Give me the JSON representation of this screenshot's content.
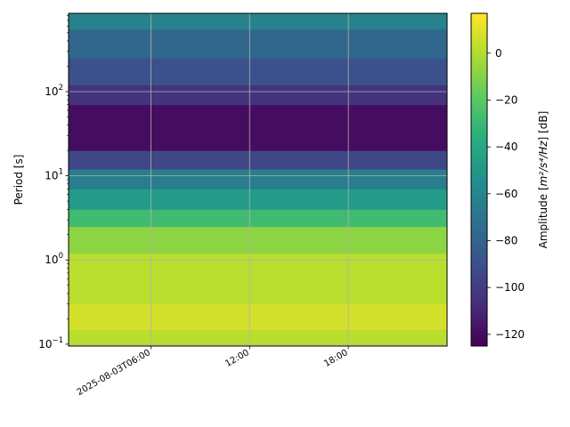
{
  "chart_data": {
    "type": "heatmap",
    "title": "",
    "xlabel": "",
    "ylabel": "Period [s]",
    "y_scale": "log",
    "ylim": [
      0.095,
      850
    ],
    "x_start": "2025-08-03T01:00",
    "x_end": "2025-08-03T24:00",
    "x_ticks": [
      {
        "time": "2025-08-03T06:00",
        "label": "2025-08-03T06:00"
      },
      {
        "time": "2025-08-03T12:00",
        "label": "12:00"
      },
      {
        "time": "2025-08-03T18:00",
        "label": "18:00"
      }
    ],
    "y_ticks": [
      {
        "value": 0.1,
        "base": "10",
        "exp": "−1"
      },
      {
        "value": 1,
        "base": "10",
        "exp": "0"
      },
      {
        "value": 10,
        "base": "10",
        "exp": "1"
      },
      {
        "value": 100,
        "base": "10",
        "exp": "2"
      }
    ],
    "grid": true,
    "colormap": "viridis",
    "colorbar": {
      "label_prefix": "Amplitude [",
      "label_math": "m²/s⁴/Hz",
      "label_suffix": "] [dB]",
      "min": -125,
      "max": 17,
      "ticks": [
        -120,
        -100,
        -80,
        -60,
        -40,
        -20,
        0
      ]
    },
    "period_bands": [
      {
        "period_min": 0.095,
        "period_max": 0.15,
        "amplitude_db": 2
      },
      {
        "period_min": 0.15,
        "period_max": 0.3,
        "amplitude_db": 8
      },
      {
        "period_min": 0.3,
        "period_max": 1.2,
        "amplitude_db": 2
      },
      {
        "period_min": 1.2,
        "period_max": 2.5,
        "amplitude_db": -8
      },
      {
        "period_min": 2.5,
        "period_max": 4,
        "amplitude_db": -28
      },
      {
        "period_min": 4,
        "period_max": 7,
        "amplitude_db": -48
      },
      {
        "period_min": 7,
        "period_max": 12,
        "amplitude_db": -65
      },
      {
        "period_min": 12,
        "period_max": 20,
        "amplitude_db": -95
      },
      {
        "period_min": 20,
        "period_max": 70,
        "amplitude_db": -120
      },
      {
        "period_min": 70,
        "period_max": 120,
        "amplitude_db": -105
      },
      {
        "period_min": 120,
        "period_max": 250,
        "amplitude_db": -90
      },
      {
        "period_min": 250,
        "period_max": 550,
        "amplitude_db": -78
      },
      {
        "period_min": 550,
        "period_max": 850,
        "amplitude_db": -62
      }
    ]
  }
}
